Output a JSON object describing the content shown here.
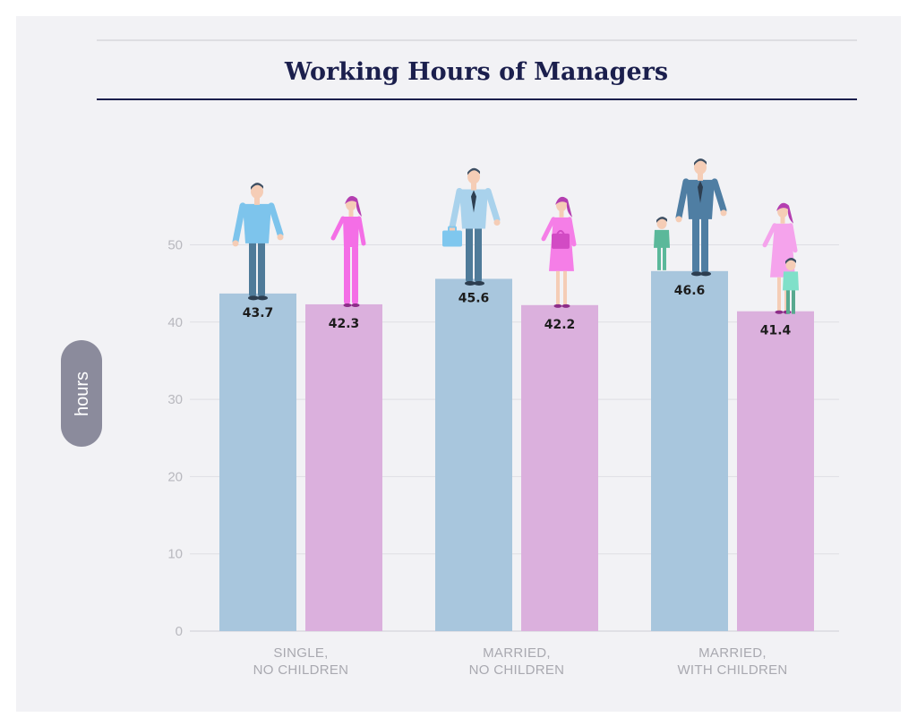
{
  "chart_data": {
    "type": "bar",
    "title": "Working Hours of Managers",
    "ylabel": "hours",
    "ylim": [
      0,
      50
    ],
    "yticks": [
      0,
      10,
      20,
      30,
      40,
      50
    ],
    "grid": true,
    "categories": [
      [
        "SINGLE,",
        "NO CHILDREN"
      ],
      [
        "MARRIED,",
        "NO CHILDREN"
      ],
      [
        "MARRIED,",
        "WITH CHILDREN"
      ]
    ],
    "series": [
      {
        "values": [
          43.7,
          45.6,
          46.6
        ],
        "color": "#a8c6dd"
      },
      {
        "values": [
          42.3,
          42.2,
          41.4
        ],
        "color": "#dbb0dd"
      }
    ]
  },
  "colors": {
    "title": "#1b1f4d",
    "grid": "#dedee3",
    "ylabel_pill": "#8b8b9c"
  }
}
